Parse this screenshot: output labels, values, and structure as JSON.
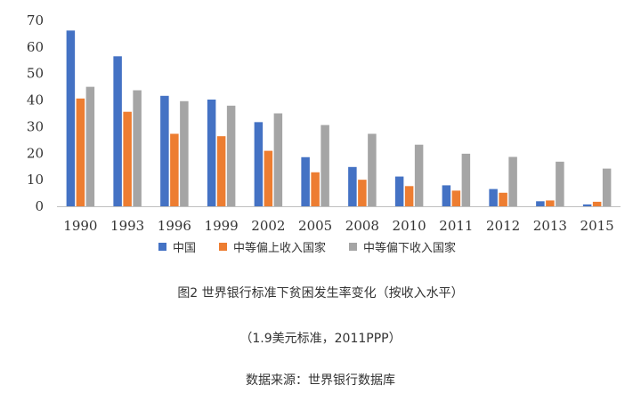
{
  "chart_data": {
    "type": "bar",
    "title": "图2 世界银行标准下贫困发生率变化（按收入水平）",
    "subtitle": "（1.9美元标准，2011PPP）",
    "source": "数据来源：世界银行数据库",
    "xlabel": "",
    "ylabel": "",
    "ylim": [
      0,
      70
    ],
    "yticks": [
      0,
      10,
      20,
      30,
      40,
      50,
      60,
      70
    ],
    "grid": false,
    "legend_position": "bottom",
    "categories": [
      "1990",
      "1993",
      "1996",
      "1999",
      "2002",
      "2005",
      "2008",
      "2010",
      "2011",
      "2012",
      "2013",
      "2015"
    ],
    "series": [
      {
        "name": "中国",
        "color": "#4472C4",
        "values": [
          66.2,
          56.5,
          41.6,
          40.2,
          31.7,
          18.5,
          14.8,
          11.2,
          7.9,
          6.5,
          1.9,
          0.7
        ]
      },
      {
        "name": "中等偏上收入国家",
        "color": "#ED7D31",
        "values": [
          40.6,
          35.6,
          27.3,
          26.4,
          20.9,
          12.8,
          10.0,
          7.6,
          5.9,
          5.1,
          2.2,
          1.7
        ]
      },
      {
        "name": "中等偏下收入国家",
        "color": "#A5A5A5",
        "values": [
          45.0,
          43.7,
          39.6,
          37.9,
          35.0,
          30.6,
          27.3,
          23.2,
          19.8,
          18.6,
          16.8,
          14.2
        ]
      }
    ]
  }
}
